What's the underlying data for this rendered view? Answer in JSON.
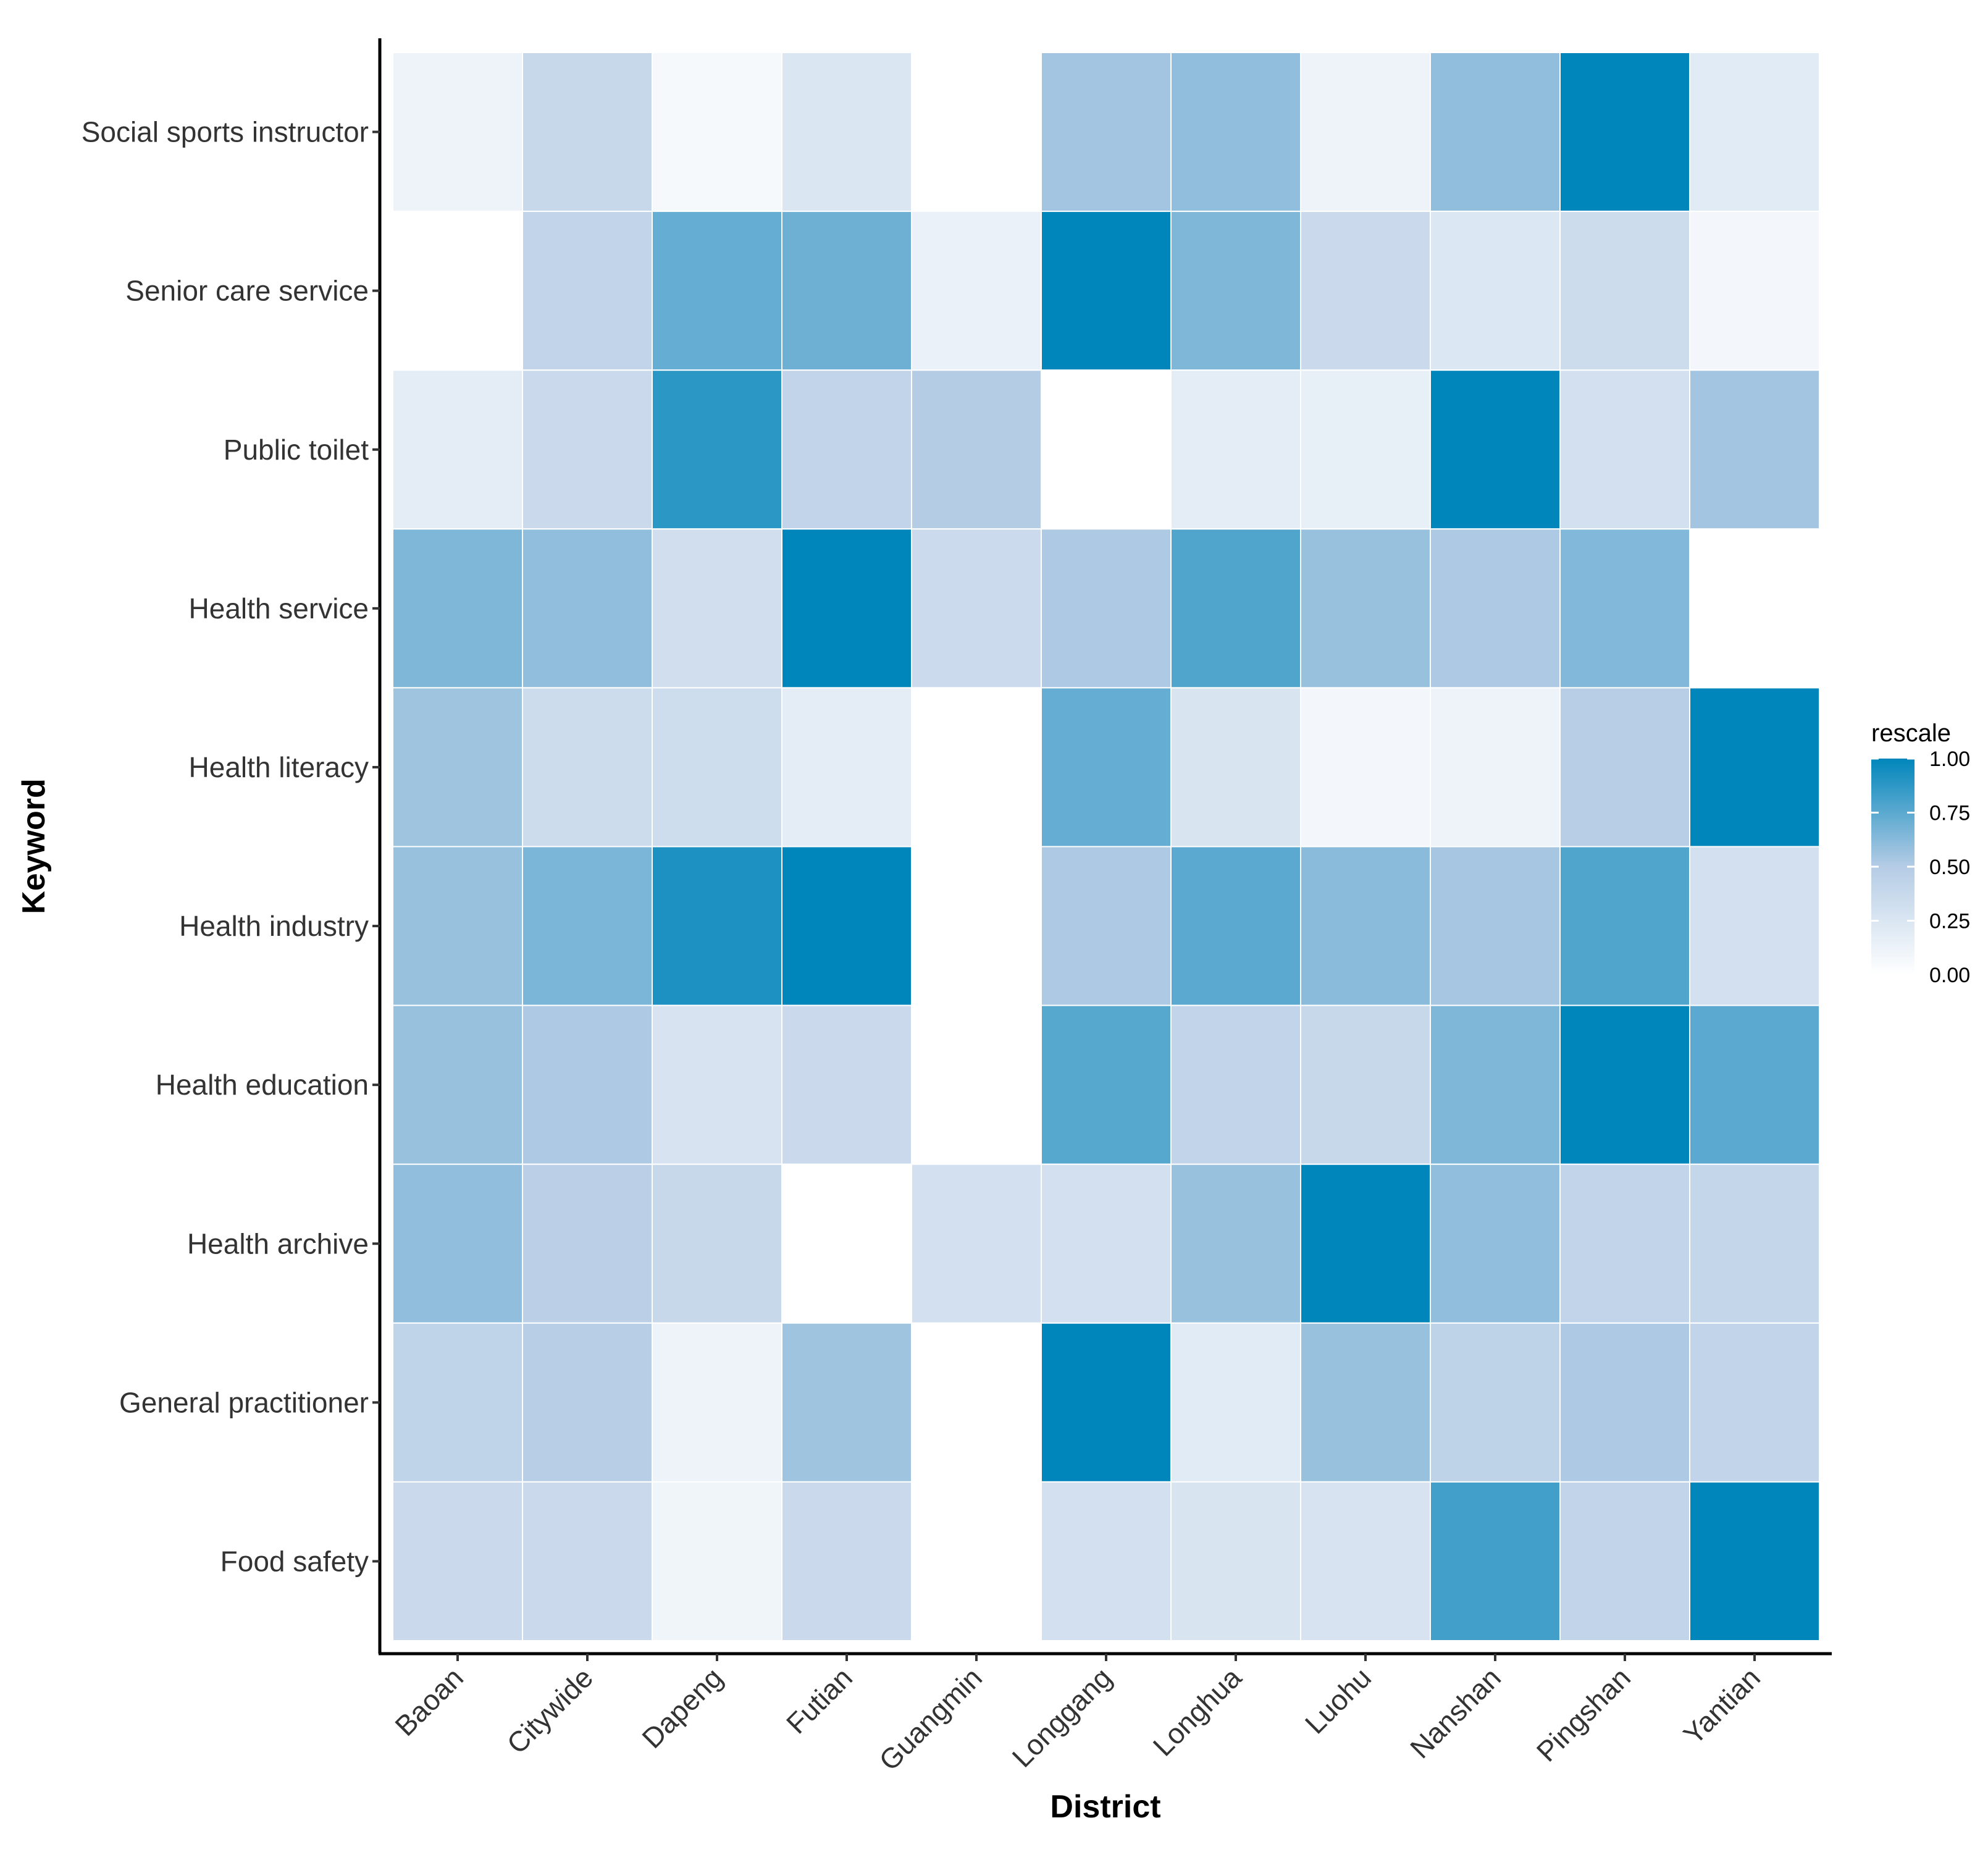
{
  "chart_data": {
    "type": "heatmap",
    "xlabel": "District",
    "ylabel": "Keyword",
    "x_categories": [
      "Baoan",
      "Citywide",
      "Dapeng",
      "Futian",
      "Guangmin",
      "Longgang",
      "Longhua",
      "Luohu",
      "Nanshan",
      "Pingshan",
      "Yantian"
    ],
    "y_categories": [
      "Social sports instructor",
      "Senior care service",
      "Public toilet",
      "Health service",
      "Health literacy",
      "Health industry",
      "Health education",
      "Health archive",
      "General practitioner",
      "Food safety"
    ],
    "values": [
      [
        0.12,
        0.38,
        0.06,
        0.25,
        0.0,
        0.55,
        0.6,
        0.12,
        0.6,
        1.0,
        0.2
      ],
      [
        0.0,
        0.42,
        0.72,
        0.7,
        0.14,
        1.0,
        0.65,
        0.36,
        0.24,
        0.34,
        0.08
      ],
      [
        0.18,
        0.36,
        0.88,
        0.42,
        0.5,
        0.0,
        0.18,
        0.16,
        1.0,
        0.3,
        0.55
      ],
      [
        0.65,
        0.6,
        0.32,
        1.0,
        0.35,
        0.52,
        0.78,
        0.58,
        0.52,
        0.64,
        0.0
      ],
      [
        0.56,
        0.34,
        0.33,
        0.18,
        0.0,
        0.72,
        0.26,
        0.08,
        0.12,
        0.48,
        1.0
      ],
      [
        0.58,
        0.66,
        0.92,
        1.0,
        0.0,
        0.52,
        0.75,
        0.62,
        0.54,
        0.78,
        0.3
      ],
      [
        0.58,
        0.52,
        0.27,
        0.36,
        0.0,
        0.76,
        0.42,
        0.38,
        0.65,
        1.0,
        0.75
      ],
      [
        0.6,
        0.46,
        0.38,
        0.0,
        0.3,
        0.3,
        0.58,
        1.0,
        0.6,
        0.42,
        0.4
      ],
      [
        0.43,
        0.48,
        0.12,
        0.56,
        0.0,
        1.0,
        0.2,
        0.58,
        0.44,
        0.52,
        0.42
      ],
      [
        0.36,
        0.36,
        0.1,
        0.36,
        0.0,
        0.3,
        0.26,
        0.27,
        0.82,
        0.42,
        1.0
      ]
    ],
    "color_scale": {
      "low": "#ffffff",
      "mid": "#b5cce5",
      "high": "#0086bb"
    },
    "legend": {
      "title": "rescale",
      "ticks": [
        1.0,
        0.75,
        0.5,
        0.25,
        0.0
      ],
      "tick_labels": [
        "1.00",
        "0.75",
        "0.50",
        "0.25",
        "0.00"
      ],
      "position": "right"
    }
  }
}
